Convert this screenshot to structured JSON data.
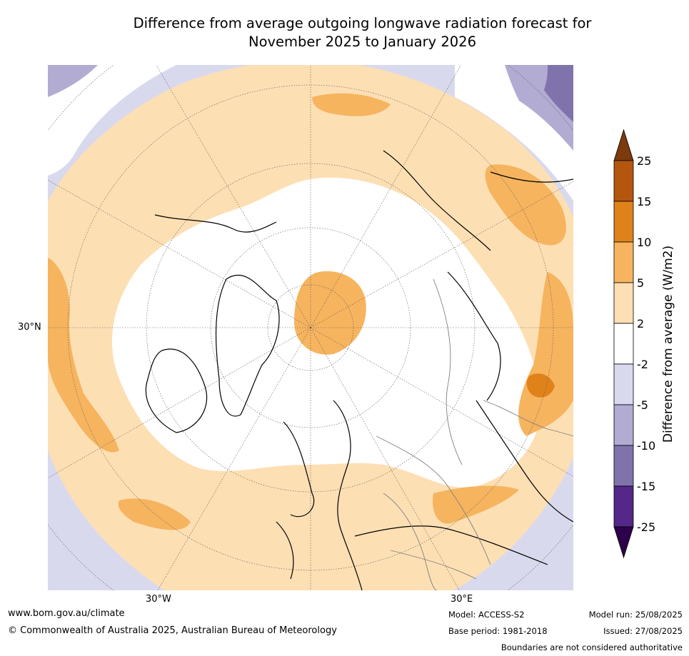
{
  "title": {
    "line1": "Difference from average outgoing longwave radiation forecast for",
    "line2": "November 2025 to January 2026"
  },
  "axis_labels": {
    "lat_30n": "30°N",
    "lon_30w": "30°W",
    "lon_30e": "30°E"
  },
  "colorbar": {
    "title": "Difference from average (W/m2)",
    "ticks": [
      "25",
      "15",
      "10",
      "5",
      "2",
      "-2",
      "-5",
      "-10",
      "-15",
      "-25"
    ],
    "colors": [
      "#7d3a0c",
      "#b5560f",
      "#e0821a",
      "#f6b45f",
      "#fddfb4",
      "#ffffff",
      "#d9d9ee",
      "#b2abd2",
      "#8073ac",
      "#542788",
      "#2d004b"
    ]
  },
  "footer": {
    "website": "www.bom.gov.au/climate",
    "copyright": "© Commonwealth of Australia 2025, Australian Bureau of Meteorology",
    "model": "Model: ACCESS-S2",
    "base_period": "Base period: 1981-2018",
    "model_run": "Model run: 25/08/2025",
    "issued": "Issued: 27/08/2025",
    "disclaimer": "Boundaries are not considered authoritative"
  }
}
